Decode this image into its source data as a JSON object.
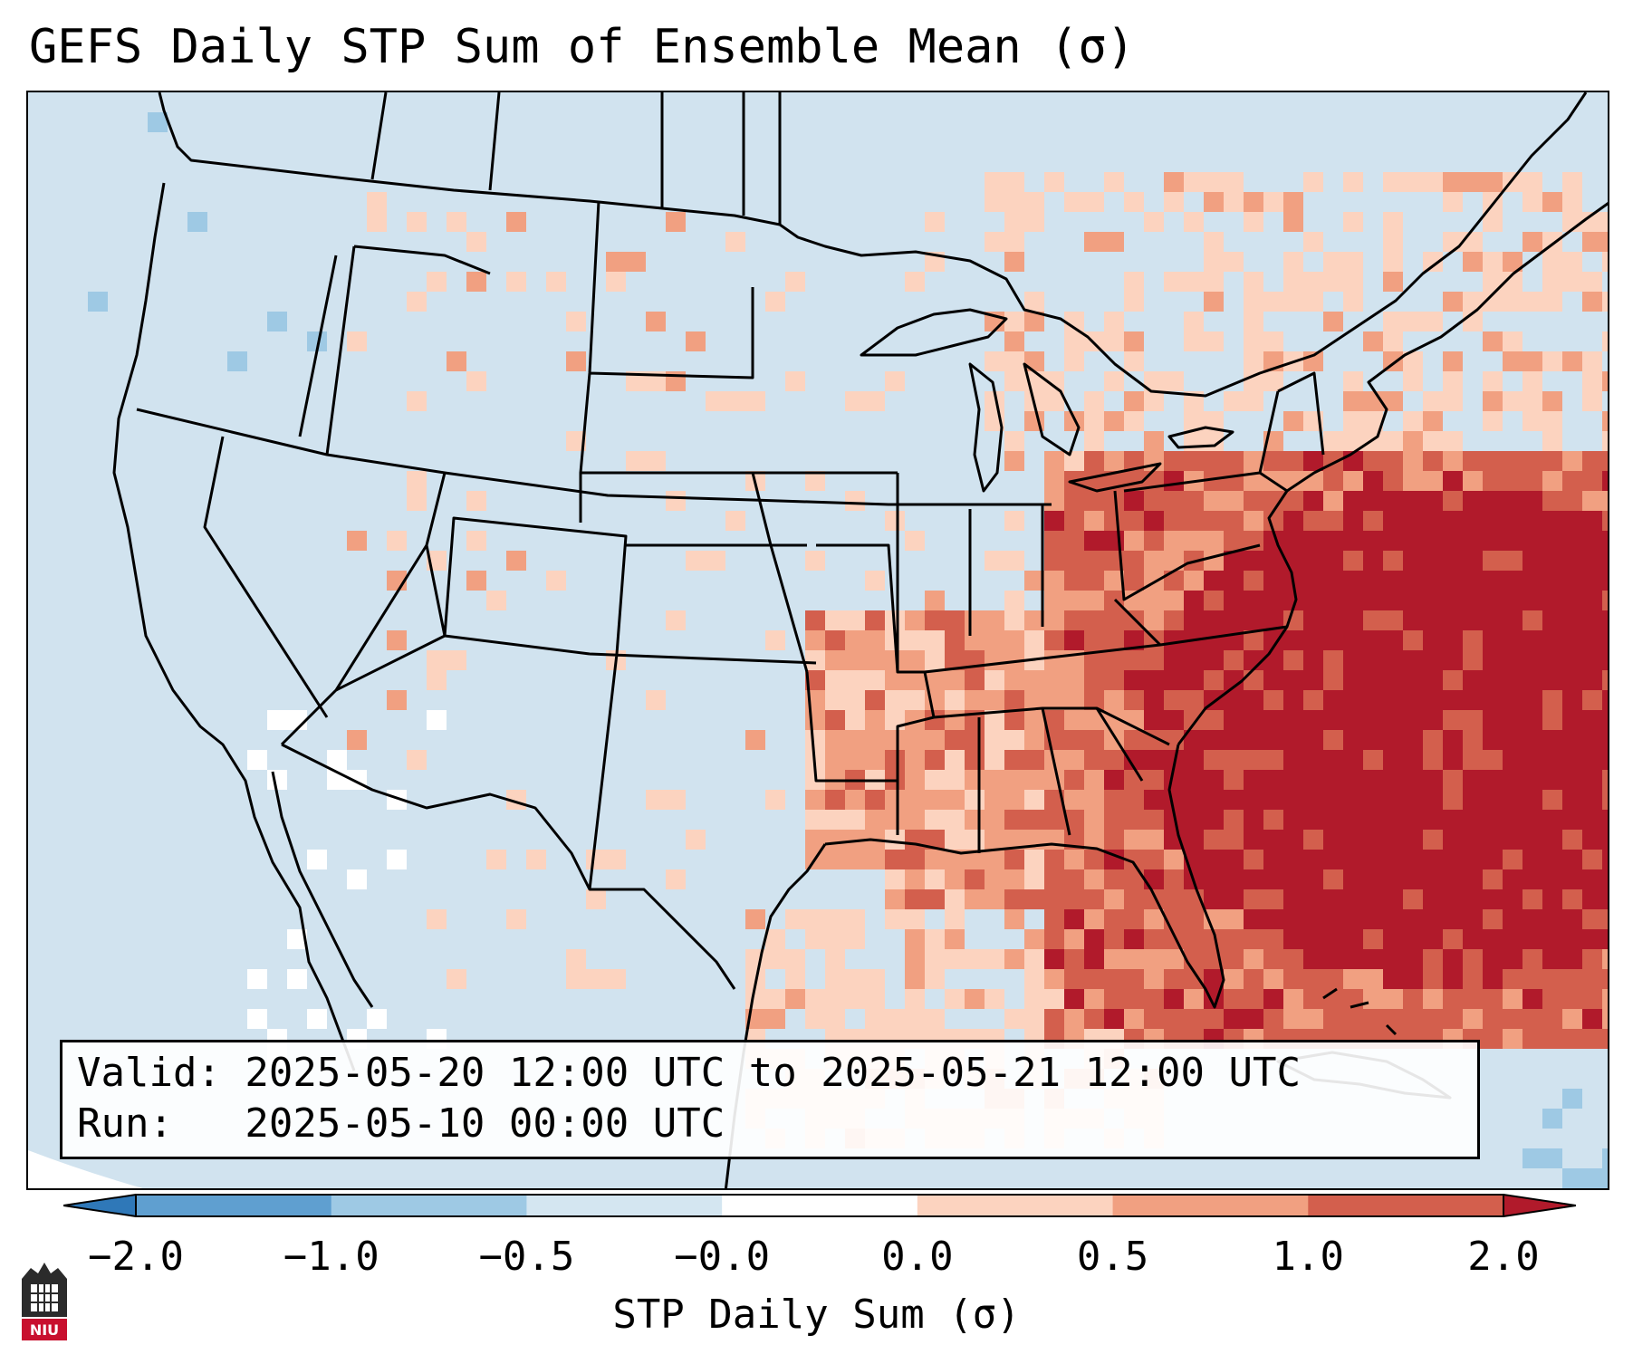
{
  "title": "GEFS Daily STP Sum of Ensemble Mean (σ)",
  "info": {
    "valid_line": "Valid: 2025-05-20 12:00 UTC to 2025-05-21 12:00 UTC",
    "run_line": "Run:   2025-05-10 00:00 UTC"
  },
  "colorbar": {
    "label": "STP Daily Sum (σ)",
    "ticks": [
      "−2.0",
      "−1.0",
      "−0.5",
      "−0.0",
      "0.0",
      "0.5",
      "1.0",
      "2.0"
    ],
    "colors": [
      "#2f78b8",
      "#5f9fd0",
      "#9ec9e4",
      "#d4e6f1",
      "#ffffff",
      "#fcd3bf",
      "#f1a081",
      "#d35f4d",
      "#b11a2b"
    ],
    "under_color": "#2f78b8",
    "over_color": "#b11a2b"
  },
  "map": {
    "background_color": "#d1e3ef",
    "border_color": "#000000",
    "region": "Continental United States, southern Canada, northern Mexico"
  },
  "logo": {
    "text": "NIU"
  }
}
